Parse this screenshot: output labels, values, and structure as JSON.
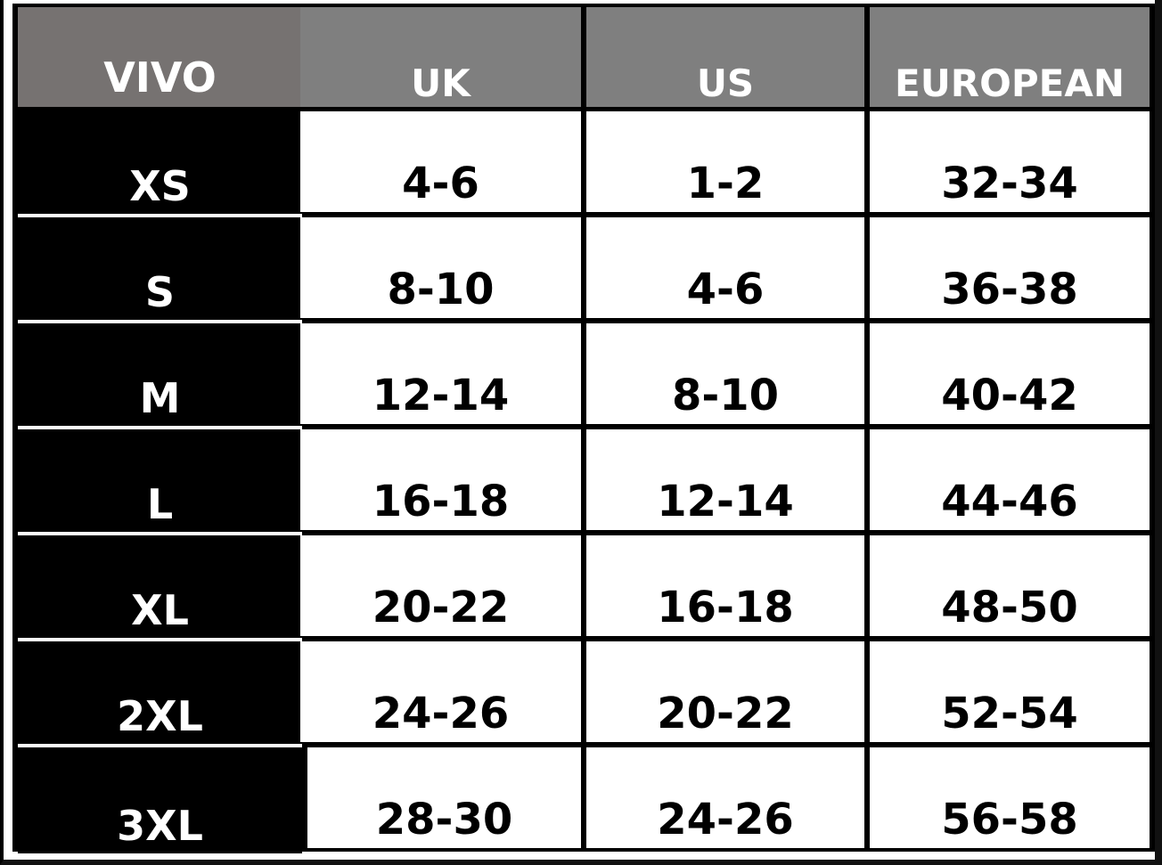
{
  "headers": [
    "VIVO",
    "UK",
    "US",
    "EUROPEAN"
  ],
  "rows": [
    {
      "size": "XS",
      "uk": "4-6",
      "us": "1-2",
      "eu": "32-34"
    },
    {
      "size": "S",
      "uk": "8-10",
      "us": "4-6",
      "eu": "36-38"
    },
    {
      "size": "M",
      "uk": "12-14",
      "us": "8-10",
      "eu": "40-42"
    },
    {
      "size": "L",
      "uk": "16-18",
      "us": "12-14",
      "eu": "44-46"
    },
    {
      "size": "XL",
      "uk": "20-22",
      "us": "16-18",
      "eu": "48-50"
    },
    {
      "size": "2XL",
      "uk": "24-26",
      "us": "20-22",
      "eu": "52-54"
    },
    {
      "size": "3XL",
      "uk": "28-30",
      "us": "24-26",
      "eu": "56-58"
    }
  ],
  "colors": {
    "header_first": "#767271",
    "header": "#7f7f7f",
    "size_cell": "#000000",
    "value_cell": "#ffffff"
  }
}
